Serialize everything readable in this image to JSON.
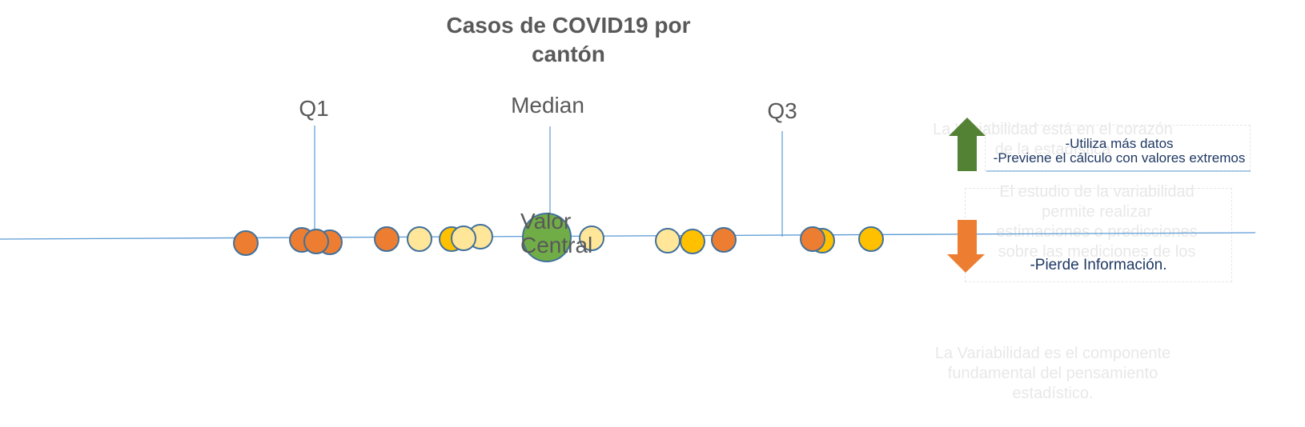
{
  "title_line1": "Casos de COVID19 por",
  "title_line2": "cantón",
  "labels": {
    "q1": "Q1",
    "median": "Median",
    "q3": "Q3",
    "valor_line1": "Valor",
    "valor_line2": "Central"
  },
  "pros": {
    "line1": "-Utiliza más datos",
    "line2": "-Previene el cálculo con valores extremos"
  },
  "cons": {
    "line1": "-Pierde Información."
  },
  "faded_text": {
    "block1_line1": "La Variabilidad está en el corazón",
    "block1_line2": "de la estadística",
    "block2_line1": "El estudio de la variabilidad",
    "block2_line2": "permite realizar",
    "block2_line3": "estimaciones o predicciones",
    "block2_line4": "sobre las mediciones de los",
    "block3_line1": "La Variabilidad es el componente",
    "block3_line2": "fundamental del pensamiento",
    "block3_line3": "estadístico."
  },
  "colors": {
    "orange": "#ed7d31",
    "gold": "#ffc000",
    "light": "#ffe699",
    "green": "#70ad47",
    "arrow_green": "#548235",
    "arrow_orange": "#ed7d31",
    "line": "#5b9bd5"
  },
  "icons": {
    "up": "arrow-up-icon",
    "down": "arrow-down-icon"
  }
}
